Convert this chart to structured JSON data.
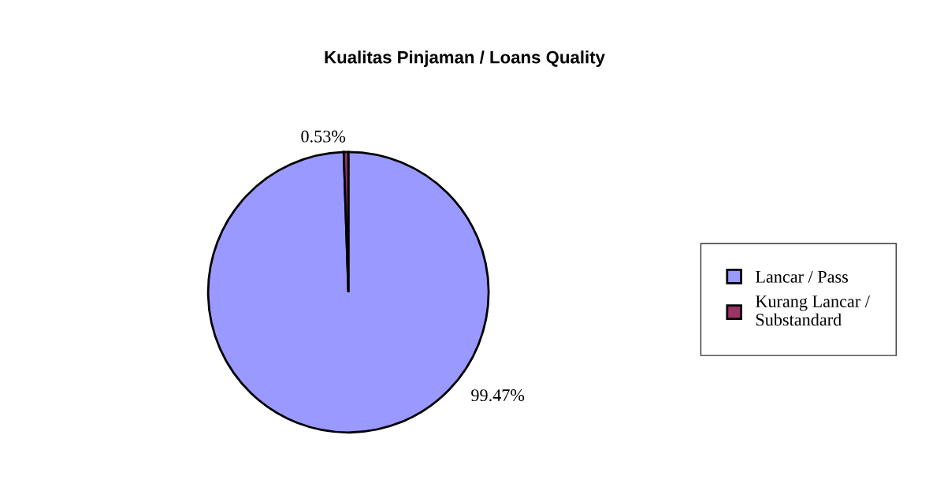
{
  "chart_data": {
    "type": "pie",
    "title": "Kualitas Pinjaman / Loans Quality",
    "categories": [
      "Lancar / Pass",
      "Kurang Lancar /\nSubstandard"
    ],
    "values": [
      99.47,
      0.53
    ],
    "colors": [
      "#9999ff",
      "#993366"
    ],
    "value_labels": [
      "99.47%",
      "0.53%"
    ],
    "legend": "right"
  }
}
